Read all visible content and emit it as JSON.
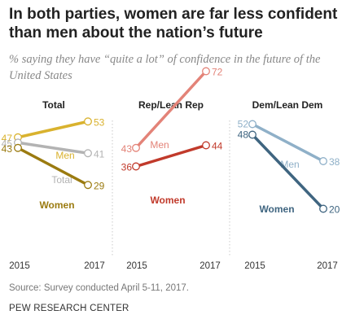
{
  "title": "In both parties, women are far less confident than men about the nation’s future",
  "subtitle": "% saying they have “quite a lot” of confidence in the future of the United States",
  "source": "Source: Survey conducted April 5-11, 2017.",
  "org": "PEW RESEARCH CENTER",
  "chart_data": [
    {
      "type": "line",
      "title": "Total",
      "x": [
        "2015",
        "2017"
      ],
      "series": [
        {
          "name": "Men",
          "values": [
            47,
            53
          ],
          "color": "#d9b22e"
        },
        {
          "name": "Total",
          "values": [
            45,
            41
          ],
          "color": "#b3b3b3"
        },
        {
          "name": "Women",
          "values": [
            43,
            29
          ],
          "color": "#9b7b10"
        }
      ]
    },
    {
      "type": "line",
      "title": "Rep/Lean Rep",
      "x": [
        "2015",
        "2017"
      ],
      "series": [
        {
          "name": "Men",
          "values": [
            43,
            72
          ],
          "color": "#e38378"
        },
        {
          "name": "Women",
          "values": [
            36,
            44
          ],
          "color": "#c13a2b"
        }
      ]
    },
    {
      "type": "line",
      "title": "Dem/Lean Dem",
      "x": [
        "2015",
        "2017"
      ],
      "series": [
        {
          "name": "Men",
          "values": [
            52,
            38
          ],
          "color": "#8fb0c8"
        },
        {
          "name": "Women",
          "values": [
            48,
            20
          ],
          "color": "#3f6580"
        }
      ]
    }
  ]
}
